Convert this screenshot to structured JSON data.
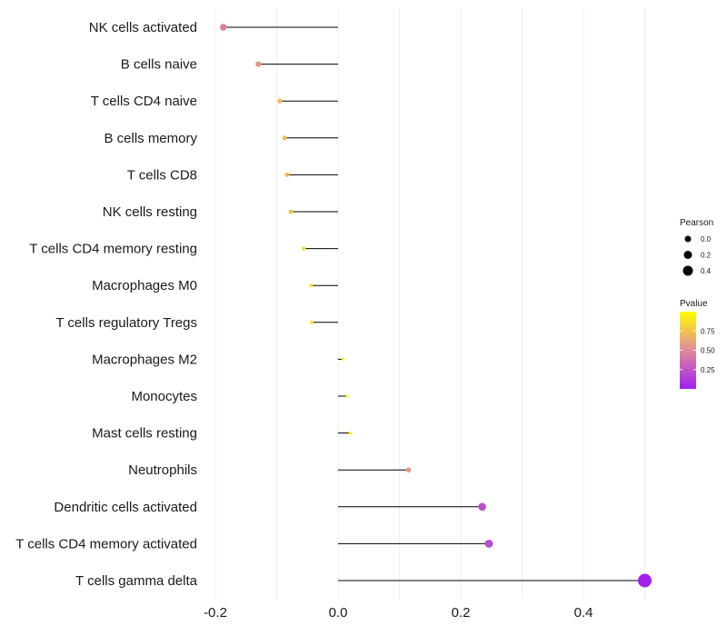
{
  "chart_data": {
    "type": "scatter",
    "style": "lollipop",
    "title": "",
    "xlabel": "",
    "ylabel": "",
    "xlim": [
      -0.2,
      0.5
    ],
    "xticks": [
      -0.2,
      0.0,
      0.2,
      0.4
    ],
    "xtick_labels": [
      "-0.2",
      "0.0",
      "0.2",
      "0.4"
    ],
    "grid": true,
    "legend_placement": "right",
    "categories": [
      "NK cells activated",
      "B cells naive",
      "T cells CD4 naive",
      "B cells memory",
      "T cells CD8",
      "NK cells resting",
      "T cells CD4 memory resting",
      "Macrophages M0",
      "T cells regulatory  Tregs",
      "Macrophages M2",
      "Monocytes",
      "Mast cells resting",
      "Neutrophils",
      "Dendritic cells activated",
      "T cells CD4 memory activated",
      "T cells gamma delta"
    ],
    "pearson": [
      -0.187,
      -0.13,
      -0.095,
      -0.087,
      -0.083,
      -0.077,
      -0.056,
      -0.044,
      -0.043,
      0.008,
      0.015,
      0.02,
      0.115,
      0.235,
      0.246,
      0.5
    ],
    "pvalue": [
      0.45,
      0.55,
      0.7,
      0.72,
      0.73,
      0.75,
      0.85,
      0.88,
      0.88,
      0.98,
      0.97,
      0.95,
      0.58,
      0.22,
      0.2,
      0.01
    ],
    "size_legend": {
      "title": "Pearson",
      "values": [
        0.0,
        0.2,
        0.4
      ],
      "labels": [
        "0.0",
        "0.2",
        "0.4"
      ]
    },
    "color_legend": {
      "title": "Pvalue",
      "range": [
        0.0,
        1.0
      ],
      "ticks": [
        0.75,
        0.5,
        0.25
      ],
      "labels": [
        "0.75",
        "0.50",
        "0.25"
      ],
      "low_color": "#a020f0",
      "mid_color": "#e08a9a",
      "high_color": "#ffff00"
    }
  }
}
